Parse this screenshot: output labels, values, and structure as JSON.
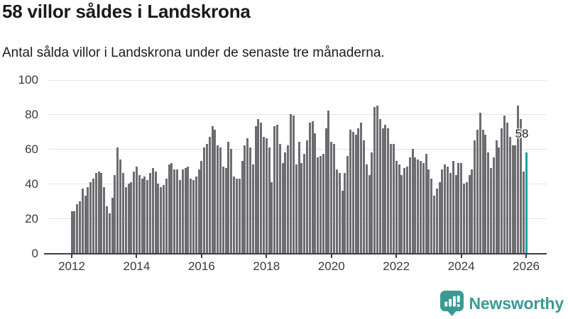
{
  "header": {
    "title": "58 villor såldes i Landskrona",
    "subtitle": "Antal sålda villor i Landskrona under de senaste tre månaderna."
  },
  "chart_data": {
    "type": "bar",
    "title": "58 villor såldes i Landskrona",
    "subtitle": "Antal sålda villor i Landskrona under de senaste tre månaderna.",
    "frequency": "monthly",
    "x_start": "2012-01",
    "x_end": "2026-01",
    "ylim": [
      0,
      100
    ],
    "y_ticks": [
      0,
      20,
      40,
      60,
      80,
      100
    ],
    "x_tick_years": [
      2012,
      2014,
      2016,
      2018,
      2020,
      2022,
      2024,
      2026
    ],
    "grid": "horizontal",
    "bar_color": "#6c6c71",
    "highlight": {
      "index": 168,
      "value": 58,
      "label": "58",
      "color": "#18a29d"
    },
    "values": [
      24,
      24,
      28,
      30,
      37,
      33,
      38,
      41,
      43,
      46,
      47,
      46,
      38,
      27,
      23,
      32,
      45,
      61,
      54,
      46,
      38,
      40,
      41,
      47,
      50,
      45,
      43,
      44,
      42,
      46,
      49,
      47,
      40,
      38,
      39,
      43,
      51,
      52,
      48,
      48,
      42,
      48,
      49,
      50,
      43,
      42,
      44,
      48,
      53,
      61,
      63,
      67,
      73,
      71,
      62,
      61,
      50,
      49,
      64,
      60,
      44,
      43,
      43,
      53,
      62,
      66,
      61,
      51,
      73,
      77,
      75,
      67,
      66,
      61,
      41,
      73,
      74,
      63,
      52,
      58,
      62,
      80,
      79,
      51,
      64,
      52,
      57,
      65,
      75,
      76,
      69,
      55,
      56,
      57,
      72,
      82,
      64,
      63,
      48,
      46,
      36,
      46,
      56,
      71,
      70,
      68,
      72,
      75,
      65,
      51,
      45,
      58,
      84,
      85,
      77,
      72,
      74,
      72,
      63,
      63,
      53,
      51,
      45,
      49,
      50,
      55,
      60,
      55,
      54,
      53,
      52,
      57,
      48,
      43,
      33,
      37,
      41,
      48,
      51,
      50,
      46,
      53,
      45,
      52,
      52,
      40,
      41,
      45,
      48,
      65,
      71,
      81,
      71,
      68,
      58,
      49,
      55,
      65,
      61,
      72,
      79,
      75,
      67,
      62,
      62,
      85,
      77,
      47,
      58
    ]
  },
  "branding": {
    "name": "Newsworthy",
    "color": "#3a9a93",
    "icon": "bar-chart-speech-bubble"
  }
}
